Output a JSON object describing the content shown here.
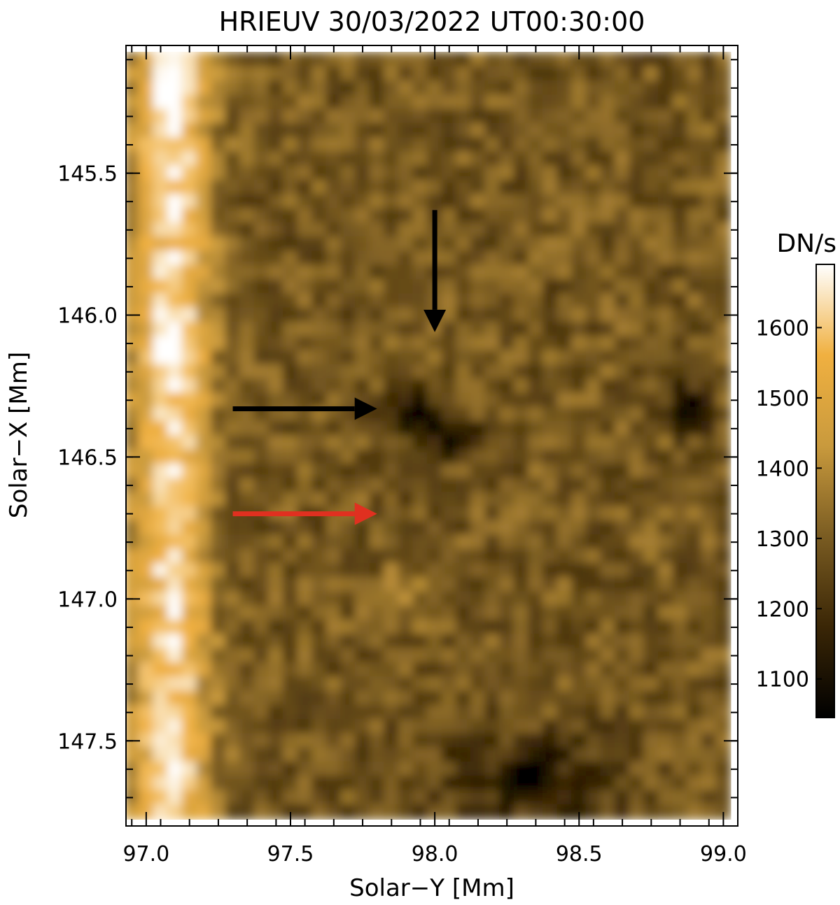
{
  "chart_data": {
    "type": "heatmap",
    "title": "HRIEUV 30/03/2022 UT00:30:00",
    "xlabel": "Solar−Y [Mm]",
    "ylabel": "Solar−X [Mm]",
    "xlim": [
      96.93,
      99.05
    ],
    "ylim": [
      145.05,
      147.8
    ],
    "y_inverted": true,
    "x_ticks": [
      "97.0",
      "97.5",
      "98.0",
      "98.5",
      "99.0"
    ],
    "x_tick_values": [
      97.0,
      97.5,
      98.0,
      98.5,
      99.0
    ],
    "y_ticks": [
      "145.5",
      "146.0",
      "146.5",
      "147.0",
      "147.5"
    ],
    "y_tick_values": [
      145.5,
      146.0,
      146.5,
      147.0,
      147.5
    ],
    "colorbar": {
      "label": "DN/s",
      "range": [
        1045,
        1690
      ],
      "ticks": [
        "1100",
        "1200",
        "1300",
        "1400",
        "1500",
        "1600"
      ],
      "tick_values": [
        1100,
        1200,
        1300,
        1400,
        1500,
        1600
      ],
      "colors": [
        "#000000",
        "#3a2606",
        "#7a5c22",
        "#c99a3d",
        "#f0b040",
        "#ffffff"
      ]
    },
    "arrows": [
      {
        "color": "#000000",
        "direction": "down",
        "x_from": 98.0,
        "y_from": 145.63,
        "x_to": 98.0,
        "y_to": 146.06
      },
      {
        "color": "#000000",
        "direction": "right",
        "x_from": 97.3,
        "y_from": 146.33,
        "x_to": 97.8,
        "y_to": 146.33
      },
      {
        "color": "#e03020",
        "direction": "right",
        "x_from": 97.3,
        "y_from": 146.7,
        "x_to": 97.8,
        "y_to": 146.7
      }
    ],
    "grid_x": [
      96.95,
      97.0,
      97.05,
      97.1,
      97.15,
      97.2,
      97.25,
      97.3,
      97.35,
      97.4,
      97.45,
      97.5,
      97.55,
      97.6,
      97.65,
      97.7,
      97.75,
      97.8,
      97.85,
      97.9,
      97.95,
      98.0,
      98.05,
      98.1,
      98.15,
      98.2,
      98.25,
      98.3,
      98.35,
      98.4,
      98.45,
      98.5,
      98.55,
      98.6,
      98.65,
      98.7,
      98.75,
      98.8,
      98.85,
      98.9,
      98.95,
      99.0
    ],
    "grid_y_start": 145.1,
    "grid_y_step": 0.05,
    "grid_y_count": 54,
    "bright_band": {
      "x_center": 97.1,
      "half_width": 0.12,
      "peak": 1690
    },
    "dark_spots": [
      {
        "x": 97.95,
        "y": 146.35,
        "value": 1060
      },
      {
        "x": 98.08,
        "y": 146.43,
        "value": 1080
      },
      {
        "x": 98.88,
        "y": 146.32,
        "value": 1050
      },
      {
        "x": 98.35,
        "y": 147.62,
        "value": 1100
      }
    ],
    "bright_spots": [
      {
        "x": 97.1,
        "y": 146.12,
        "value": 1690
      },
      {
        "x": 97.1,
        "y": 145.25,
        "value": 1670
      },
      {
        "x": 97.9,
        "y": 146.98,
        "value": 1560
      }
    ]
  }
}
